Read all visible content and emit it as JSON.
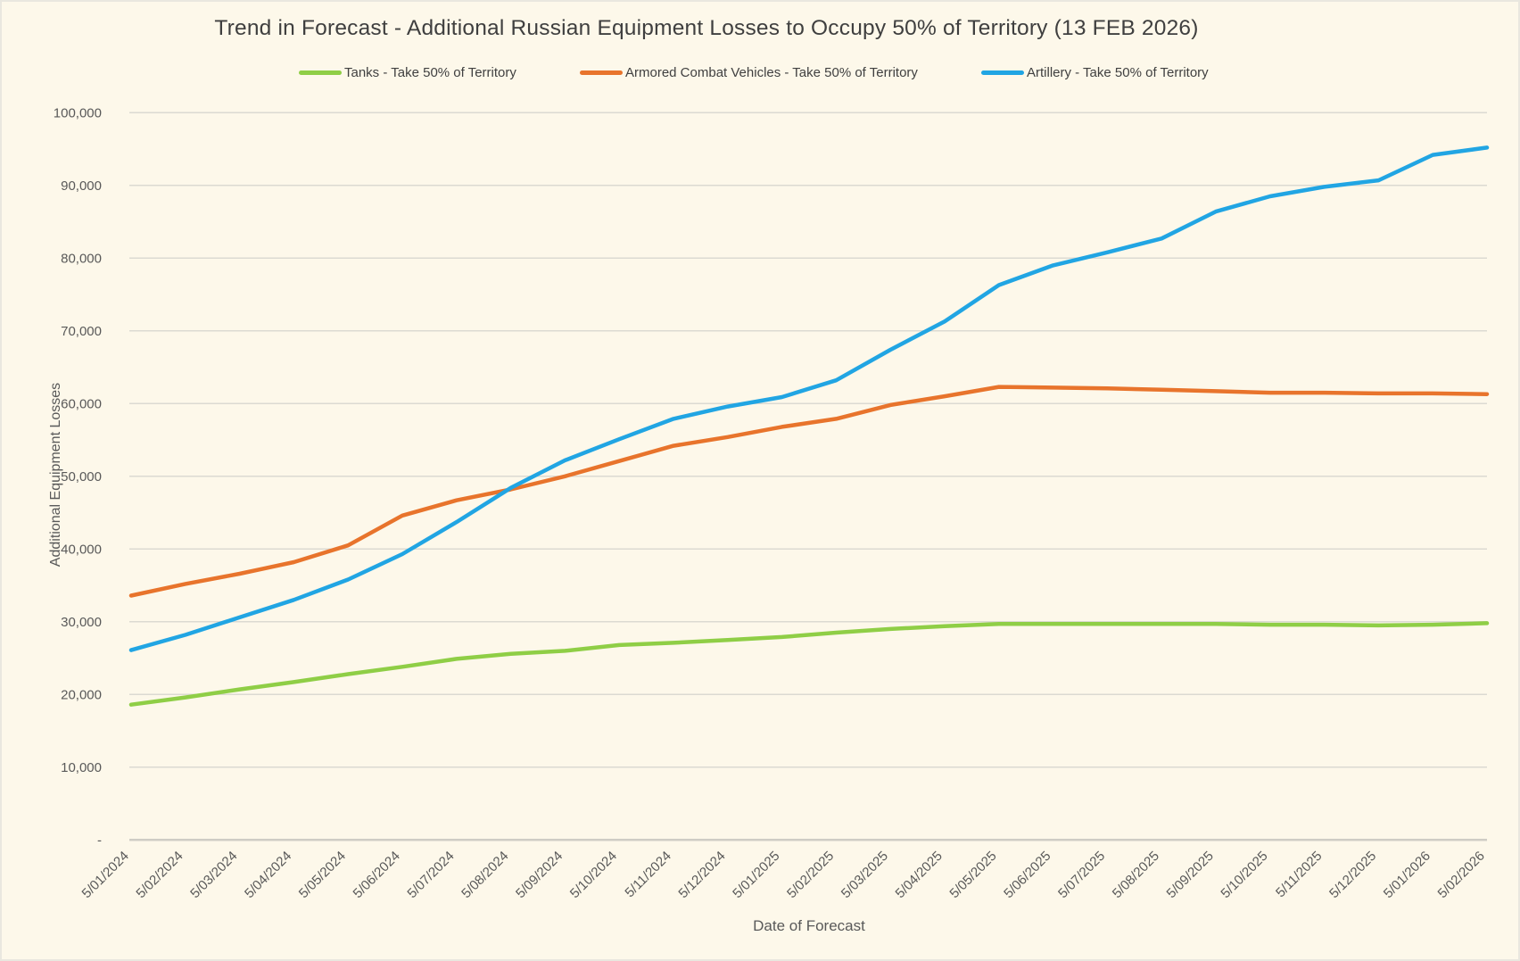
{
  "title": "Trend in Forecast - Additional Russian Equipment Losses to Occupy 50% of Territory (13 FEB 2026)",
  "colors": {
    "background": "#FDF8EA",
    "gridline": "#DCDAD2",
    "axis_line": "#CFCDC5",
    "tick_text": "#595959",
    "title_text": "#3F3F3F",
    "tanks": "#8FCE46",
    "acv": "#E8742C",
    "artillery": "#21A5E3"
  },
  "chart_data": {
    "type": "line",
    "title": "Trend in Forecast - Additional Russian Equipment Losses to Occupy 50% of Territory (13 FEB 2026)",
    "xlabel": "Date of Forecast",
    "ylabel": "Additional Equipment Losses",
    "ylim": [
      0,
      100000
    ],
    "ytick_step": 10000,
    "ytick_labels": [
      "-",
      "10,000",
      "20,000",
      "30,000",
      "40,000",
      "50,000",
      "60,000",
      "70,000",
      "80,000",
      "90,000",
      "100,000"
    ],
    "grid": true,
    "legend_position": "top",
    "categories": [
      "5/01/2024",
      "5/02/2024",
      "5/03/2024",
      "5/04/2024",
      "5/05/2024",
      "5/06/2024",
      "5/07/2024",
      "5/08/2024",
      "5/09/2024",
      "5/10/2024",
      "5/11/2024",
      "5/12/2024",
      "5/01/2025",
      "5/02/2025",
      "5/03/2025",
      "5/04/2025",
      "5/05/2025",
      "5/06/2025",
      "5/07/2025",
      "5/08/2025",
      "5/09/2025",
      "5/10/2025",
      "5/11/2025",
      "5/12/2025",
      "5/01/2026",
      "5/02/2026"
    ],
    "series": [
      {
        "name": "Tanks - Take 50% of Territory",
        "color": "#8FCE46",
        "values": [
          18600,
          19600,
          20700,
          21700,
          22800,
          23800,
          24900,
          25600,
          26000,
          26800,
          27100,
          27500,
          27900,
          28500,
          29000,
          29400,
          29700,
          29700,
          29700,
          29700,
          29700,
          29600,
          29600,
          29500,
          29600,
          29800
        ]
      },
      {
        "name": "Armored Combat Vehicles - Take 50% of Territory",
        "color": "#E8742C",
        "values": [
          33600,
          35200,
          36600,
          38200,
          40500,
          44600,
          46700,
          48200,
          50000,
          52100,
          54200,
          55400,
          56800,
          57900,
          59800,
          61000,
          62300,
          62200,
          62100,
          61900,
          61700,
          61500,
          61500,
          61400,
          61400,
          61300
        ]
      },
      {
        "name": "Artillery - Take 50% of Territory",
        "color": "#21A5E3",
        "values": [
          26100,
          28200,
          30600,
          33000,
          35800,
          39300,
          43700,
          48400,
          52200,
          55100,
          57900,
          59600,
          60900,
          63200,
          67400,
          71300,
          76300,
          79000,
          80800,
          82700,
          86400,
          88500,
          89800,
          90700,
          94200,
          95200
        ]
      }
    ]
  }
}
